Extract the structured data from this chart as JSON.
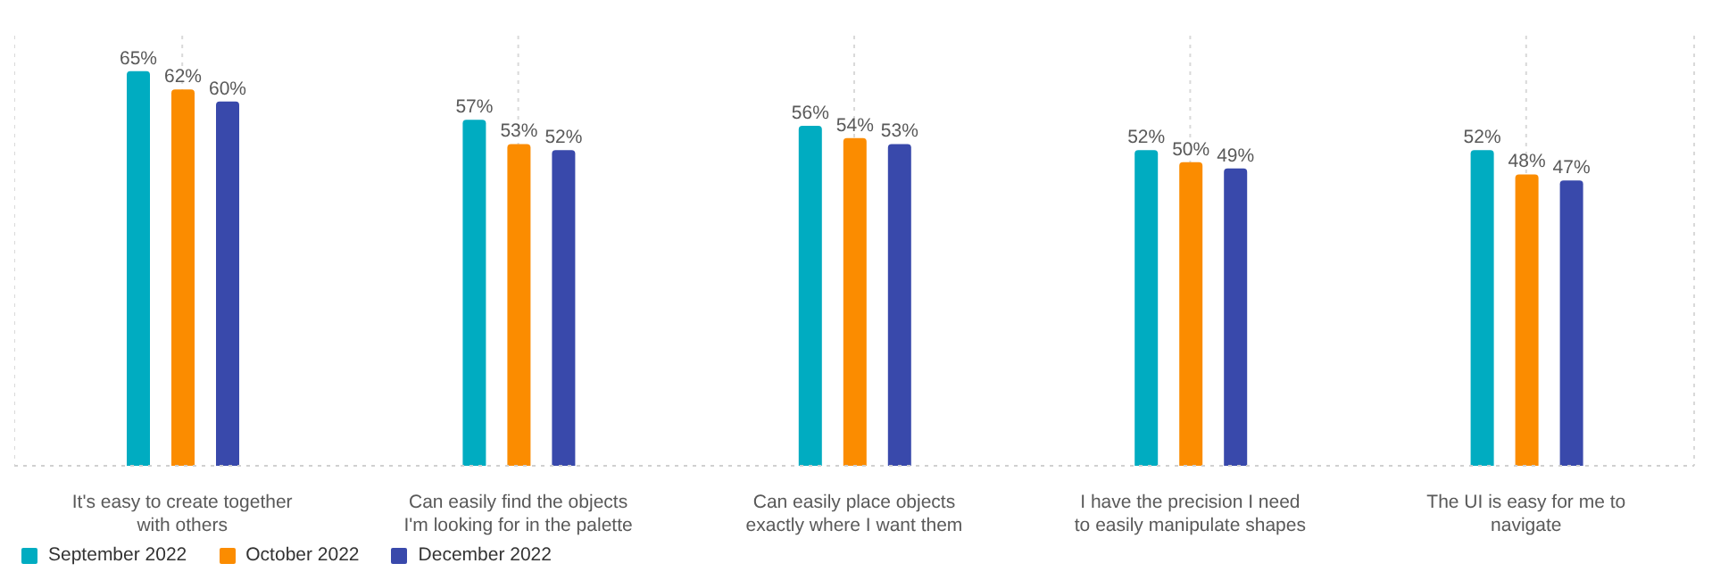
{
  "chart_data": {
    "type": "bar",
    "categories": [
      "It's easy to create together with others",
      "Can easily find the objects I'm looking for in the palette",
      "Can easily place objects exactly where I want them",
      "I have the precision I need to easily manipulate shapes",
      "The UI is easy for me to navigate"
    ],
    "series": [
      {
        "name": "September 2022",
        "color": "#00acc1",
        "values": [
          65,
          57,
          56,
          52,
          52
        ],
        "value_labels": [
          "65%",
          "57%",
          "56%",
          "52%",
          "52%"
        ]
      },
      {
        "name": "October 2022",
        "color": "#fb8c00",
        "values": [
          62,
          53,
          54,
          50,
          48
        ],
        "value_labels": [
          "62%",
          "53%",
          "54%",
          "50%",
          "48%"
        ]
      },
      {
        "name": "December 2022",
        "color": "#3949ab",
        "values": [
          60,
          52,
          53,
          49,
          47
        ],
        "value_labels": [
          "60%",
          "52%",
          "53%",
          "49%",
          "47%"
        ]
      }
    ],
    "grid": "x",
    "legend": "bottom left"
  }
}
